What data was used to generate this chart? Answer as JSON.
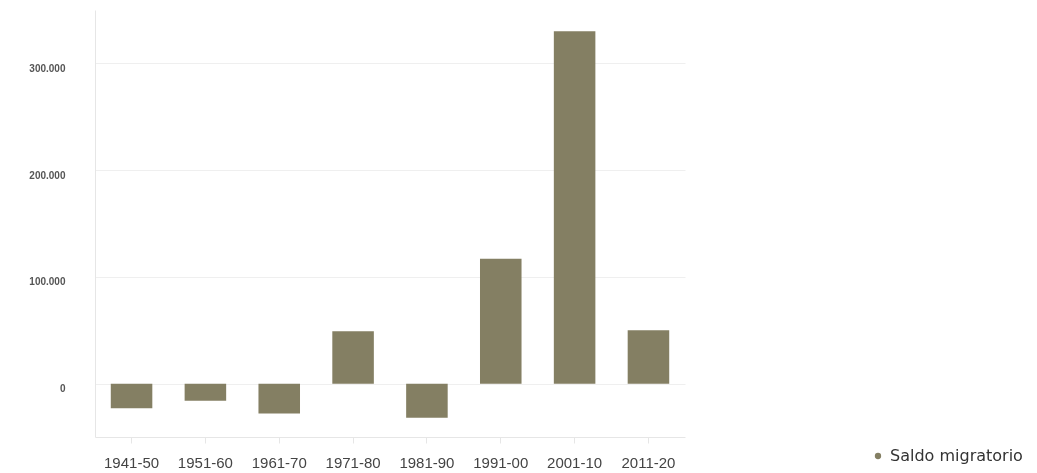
{
  "chart_data": {
    "type": "bar",
    "categories": [
      "1941-50",
      "1951-60",
      "1961-70",
      "1971-80",
      "1981-90",
      "1991-00",
      "2001-10",
      "2011-20"
    ],
    "series": [
      {
        "name": "Saldo migratorio",
        "color": "#847f63",
        "values": [
          -23000,
          -16000,
          -28000,
          49000,
          -32000,
          117000,
          330000,
          50000
        ]
      }
    ],
    "ylim": [
      -50000,
      350000
    ],
    "yticks": [
      0,
      {
        "value": 100000,
        "label": "100.000"
      },
      {
        "value": 200000,
        "label": "200.000"
      },
      {
        "value": 300000,
        "label": "300.000"
      }
    ],
    "grid": "y",
    "legend": "bottom right"
  }
}
